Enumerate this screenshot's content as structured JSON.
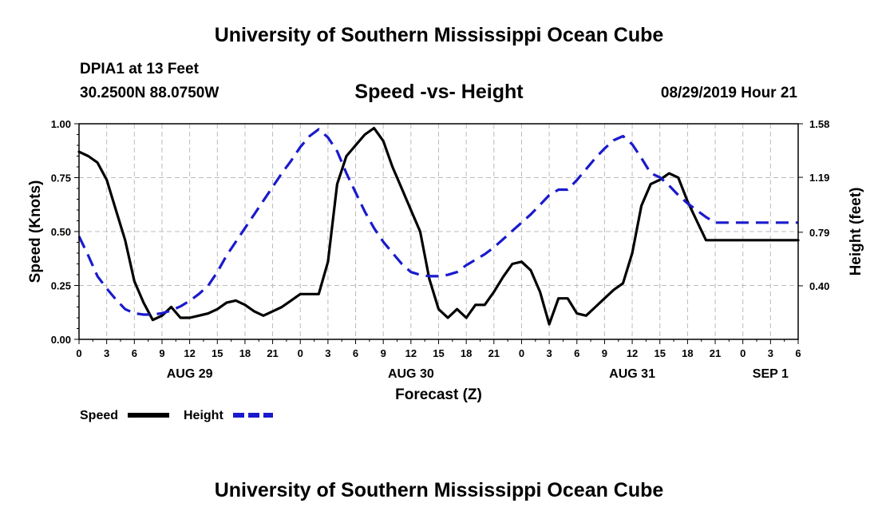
{
  "header": {
    "title": "University of Southern Mississippi Ocean Cube",
    "station": "DPIA1 at 13 Feet",
    "coords": "30.2500N 88.0750W",
    "chart_title": "Speed -vs- Height",
    "datestamp": "08/29/2019 Hour 21"
  },
  "footer": {
    "title": "University of Southern Mississippi Ocean Cube"
  },
  "colors": {
    "speed": "#000000",
    "height": "#1a1acc",
    "grid": "#bbbbbb"
  },
  "chart_data": {
    "type": "line",
    "title": "Speed -vs- Height",
    "xlabel": "Forecast (Z)",
    "ylabel": "Speed (Knots)",
    "y2label": "Height (feet)",
    "x_hours_range": [
      0,
      78
    ],
    "x_ticks": [
      "0",
      "3",
      "6",
      "9",
      "12",
      "15",
      "18",
      "21",
      "0",
      "3",
      "6",
      "9",
      "12",
      "15",
      "18",
      "21",
      "0",
      "3",
      "6",
      "9",
      "12",
      "15",
      "18",
      "21",
      "0",
      "3",
      "6"
    ],
    "day_labels": [
      {
        "label": "AUG 29",
        "hour": 12
      },
      {
        "label": "AUG 30",
        "hour": 36
      },
      {
        "label": "AUG 31",
        "hour": 60
      },
      {
        "label": "SEP 1",
        "hour": 75
      }
    ],
    "ylim": [
      0,
      1.0
    ],
    "y_ticks": [
      "0.00",
      "0.25",
      "0.50",
      "0.75",
      "1.00"
    ],
    "y2lim": [
      0.01,
      1.58
    ],
    "y2_ticks": [
      "0.40",
      "0.79",
      "1.19",
      "1.58"
    ],
    "legend": [
      {
        "name": "Speed",
        "style": "solid"
      },
      {
        "name": "Height",
        "style": "dashed"
      }
    ],
    "series": [
      {
        "name": "Speed",
        "axis": "left",
        "x": [
          0,
          1,
          2,
          3,
          4,
          5,
          6,
          7,
          8,
          9,
          10,
          11,
          12,
          13,
          14,
          15,
          16,
          17,
          18,
          19,
          20,
          21,
          22,
          23,
          24,
          25,
          26,
          27,
          28,
          29,
          30,
          31,
          32,
          33,
          34,
          35,
          36,
          37,
          38,
          39,
          40,
          41,
          42,
          43,
          44,
          45,
          46,
          47,
          48,
          49,
          50,
          51,
          52,
          53,
          54,
          55,
          56,
          57,
          58,
          59,
          60,
          61,
          62,
          63,
          64,
          65,
          66,
          67,
          68,
          69,
          70,
          71,
          72,
          73,
          74,
          75,
          76,
          77,
          78
        ],
        "values": [
          0.87,
          0.85,
          0.82,
          0.74,
          0.6,
          0.46,
          0.27,
          0.17,
          0.09,
          0.11,
          0.15,
          0.1,
          0.1,
          0.11,
          0.12,
          0.14,
          0.17,
          0.18,
          0.16,
          0.13,
          0.11,
          0.13,
          0.15,
          0.18,
          0.21,
          0.21,
          0.21,
          0.36,
          0.72,
          0.85,
          0.9,
          0.95,
          0.98,
          0.92,
          0.8,
          0.7,
          0.6,
          0.5,
          0.28,
          0.14,
          0.1,
          0.14,
          0.1,
          0.16,
          0.16,
          0.22,
          0.29,
          0.35,
          0.36,
          0.32,
          0.22,
          0.07,
          0.19,
          0.19,
          0.12,
          0.11,
          0.15,
          0.19,
          0.23,
          0.26,
          0.4,
          0.62,
          0.72,
          0.74,
          0.77,
          0.75,
          0.64,
          0.55,
          0.46,
          0.46,
          0.46,
          0.46,
          0.46,
          0.46,
          0.46,
          0.46,
          0.46,
          0.46,
          0.46
        ]
      },
      {
        "name": "Height",
        "axis": "right",
        "x": [
          0,
          1,
          2,
          3,
          4,
          5,
          6,
          7,
          8,
          9,
          10,
          11,
          12,
          13,
          14,
          15,
          16,
          17,
          18,
          19,
          20,
          21,
          22,
          23,
          24,
          25,
          26,
          27,
          28,
          29,
          30,
          31,
          32,
          33,
          34,
          35,
          36,
          37,
          38,
          39,
          40,
          41,
          42,
          43,
          44,
          45,
          46,
          47,
          48,
          49,
          50,
          51,
          52,
          53,
          54,
          55,
          56,
          57,
          58,
          59,
          60,
          61,
          62,
          63,
          64,
          65,
          66,
          67,
          68,
          69,
          70,
          71,
          72,
          73,
          74,
          75,
          76,
          77,
          78
        ],
        "values": [
          0.76,
          0.62,
          0.47,
          0.38,
          0.3,
          0.23,
          0.2,
          0.19,
          0.19,
          0.2,
          0.22,
          0.25,
          0.29,
          0.34,
          0.4,
          0.5,
          0.62,
          0.72,
          0.82,
          0.92,
          1.02,
          1.12,
          1.22,
          1.31,
          1.41,
          1.49,
          1.54,
          1.48,
          1.38,
          1.22,
          1.08,
          0.94,
          0.82,
          0.72,
          0.64,
          0.56,
          0.5,
          0.48,
          0.47,
          0.47,
          0.48,
          0.5,
          0.55,
          0.59,
          0.63,
          0.68,
          0.74,
          0.8,
          0.86,
          0.92,
          0.99,
          1.06,
          1.1,
          1.1,
          1.17,
          1.25,
          1.33,
          1.4,
          1.46,
          1.49,
          1.43,
          1.33,
          1.22,
          1.19,
          1.13,
          1.06,
          1.0,
          0.95,
          0.9,
          0.86,
          0.86,
          0.86,
          0.86,
          0.86,
          0.86,
          0.86,
          0.86,
          0.86,
          0.86
        ]
      }
    ]
  }
}
